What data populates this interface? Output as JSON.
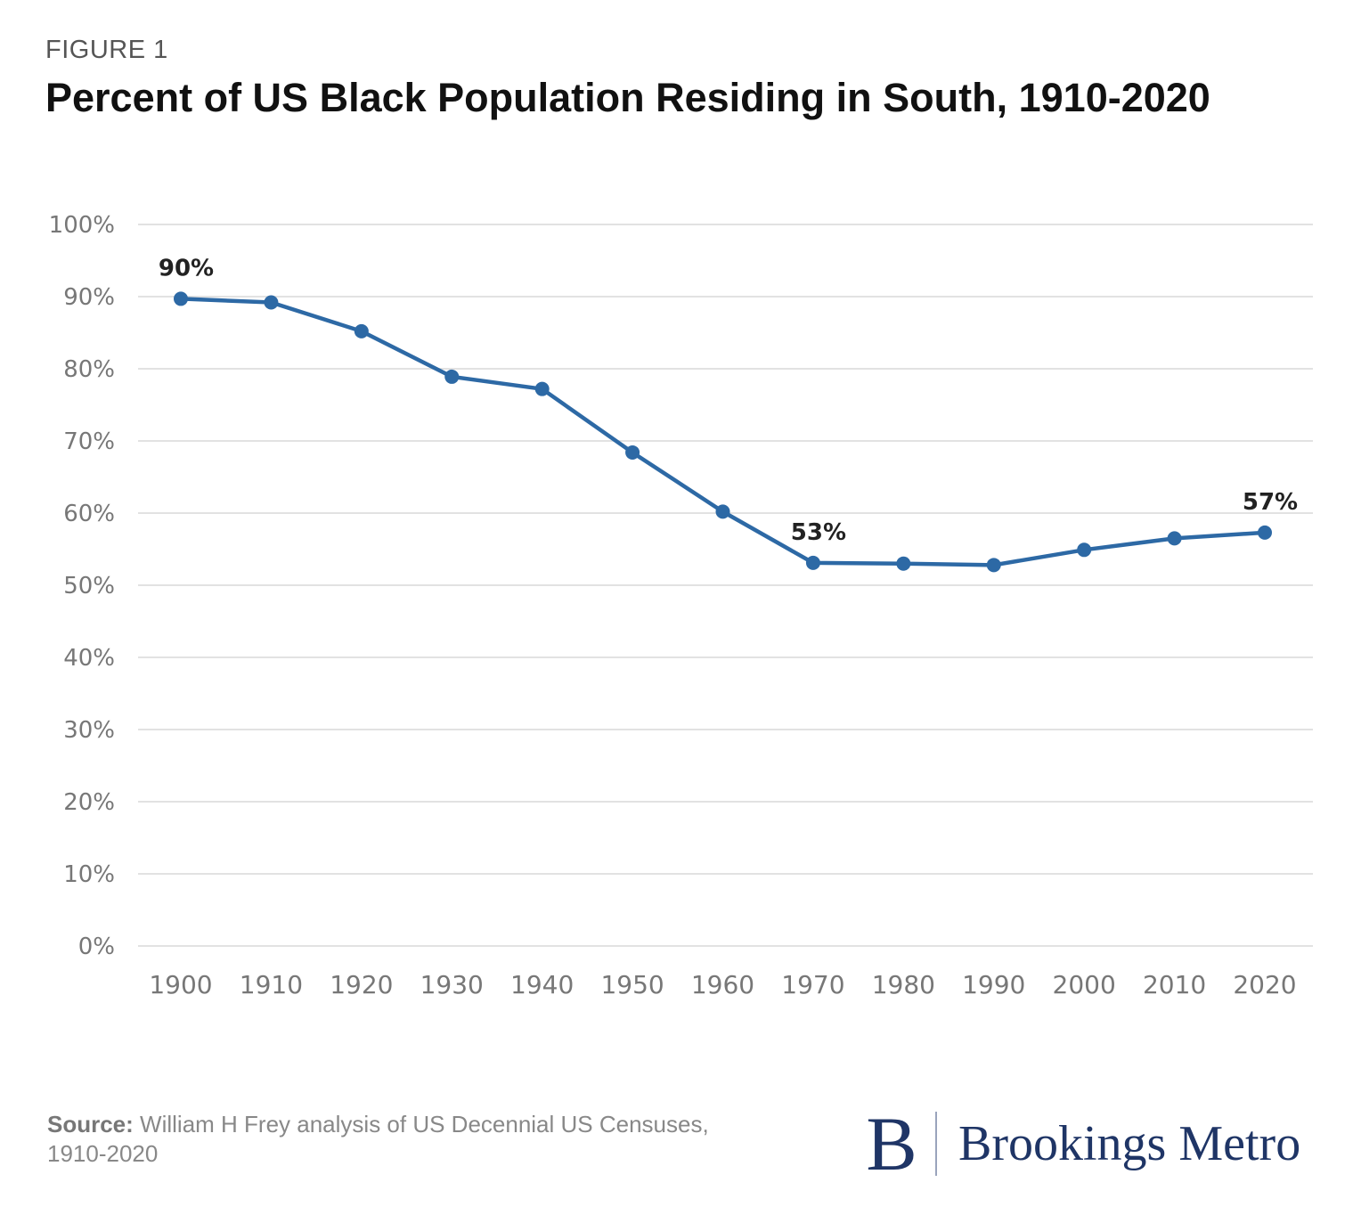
{
  "figure_label": "FIGURE 1",
  "title": "Percent of US Black Population Residing in South, 1910-2020",
  "source": {
    "label": "Source:",
    "text": "William H Frey analysis of US Decennial US Censuses, 1910-2020"
  },
  "logo": {
    "mark": "B",
    "text": "Brookings Metro"
  },
  "colors": {
    "line": "#2d69a5",
    "grid": "#e2e2e2",
    "brand": "#1f3566"
  },
  "chart_data": {
    "type": "line",
    "title": "Percent of US Black Population Residing in South, 1910-2020",
    "x": [
      1900,
      1910,
      1920,
      1930,
      1940,
      1950,
      1960,
      1970,
      1980,
      1990,
      2000,
      2010,
      2020
    ],
    "x_tick_labels": [
      "1900",
      "1910",
      "1920",
      "1930",
      "1940",
      "1950",
      "1960",
      "1970",
      "1980",
      "1990",
      "2000",
      "2010",
      "2020"
    ],
    "series": [
      {
        "values": [
          89.7,
          89.2,
          85.2,
          78.9,
          77.2,
          68.4,
          60.2,
          53.1,
          53.0,
          52.8,
          54.9,
          56.5,
          57.3
        ]
      }
    ],
    "ylim": [
      0,
      100
    ],
    "y_ticks": [
      0,
      10,
      20,
      30,
      40,
      50,
      60,
      70,
      80,
      90,
      100
    ],
    "y_tick_labels": [
      "0%",
      "10%",
      "20%",
      "30%",
      "40%",
      "50%",
      "60%",
      "70%",
      "80%",
      "90%",
      "100%"
    ],
    "annotations": [
      {
        "x": 1900,
        "text": "90%"
      },
      {
        "x": 1970,
        "text": "53%"
      },
      {
        "x": 2020,
        "text": "57%"
      }
    ],
    "grid": true,
    "legend": "none"
  }
}
